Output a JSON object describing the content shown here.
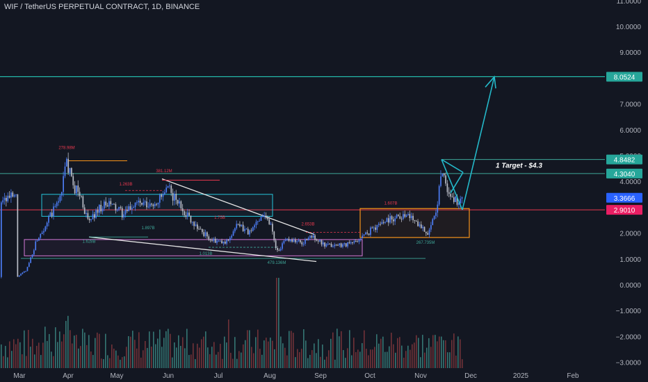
{
  "header": {
    "title": "WIF / TetherUS PERPETUAL CONTRACT, 1D, BINANCE"
  },
  "colors": {
    "background": "#131722",
    "up": "#4c7cf3",
    "down": "#b8bcc6",
    "volume_up": "#3e8f8a",
    "volume_down": "#8a3a3f",
    "target_line": "#26c6b4",
    "resistance_line": "#e9394f",
    "support_line": "#3fa89a",
    "box_cyan": "#26c6da",
    "box_pink": "#d67ad8",
    "box_orange": "#f7931a",
    "wedge_line": "#e8e8e8",
    "arrow": "#24b8c9",
    "price_badge_blue": "#2962ff",
    "price_badge_red": "#e91e63",
    "price_badge_green": "#26a69a",
    "axis_text": "#b2b5be"
  },
  "annotations": {
    "target_text": "1 Target - $4.3",
    "peak_label": "278.98M",
    "label_may": "1.263B",
    "label_jun_top": "381.12M",
    "label_may_low": "1.897B",
    "label_apr_low": "1.628B",
    "label_jul": "1.75B",
    "label_aug_low": "1.013B",
    "label_aug_vol": "479.136M",
    "label_aug_mid": "2.653B",
    "label_oct": "1.607B",
    "label_nov_low": "267.735M"
  },
  "chart_data": {
    "type": "candlestick",
    "title": "WIF / TetherUS PERPETUAL CONTRACT, 1D, BINANCE",
    "x_tick_labels": [
      "Mar",
      "Apr",
      "May",
      "Jun",
      "Jul",
      "Aug",
      "Sep",
      "Oct",
      "Nov",
      "Dec",
      "2025",
      "Feb"
    ],
    "y_tick_labels": [
      "11.0000",
      "10.0000",
      "9.0000",
      "8.0000",
      "7.0000",
      "6.0000",
      "5.0000",
      "4.0000",
      "3.0000",
      "2.0000",
      "1.0000",
      "0.0000",
      "−1.0000",
      "−2.0000",
      "−3.0000"
    ],
    "ylim": [
      -3,
      11
    ],
    "price_series": {
      "name": "WIF/USDT",
      "months": [
        "Mar",
        "Apr",
        "May",
        "Jun",
        "Jul",
        "Aug",
        "Sep",
        "Oct",
        "Nov"
      ],
      "keypoints": [
        [
          "Feb 26",
          0.3
        ],
        [
          "Mar 5",
          0.55
        ],
        [
          "Mar 12",
          1.8
        ],
        [
          "Mar 19",
          2.5
        ],
        [
          "Mar 26",
          3.3
        ],
        [
          "Mar 31",
          4.8
        ],
        [
          "Apr 3",
          3.9
        ],
        [
          "Apr 8",
          3.5
        ],
        [
          "Apr 13",
          2.4
        ],
        [
          "Apr 20",
          3.0
        ],
        [
          "Apr 27",
          3.1
        ],
        [
          "May 5",
          2.7
        ],
        [
          "May 12",
          3.2
        ],
        [
          "May 20",
          3.0
        ],
        [
          "May 28",
          3.4
        ],
        [
          "Jun 1",
          3.7
        ],
        [
          "Jun 5",
          3.3
        ],
        [
          "Jun 12",
          2.7
        ],
        [
          "Jun 20",
          2.1
        ],
        [
          "Jun 27",
          1.7
        ],
        [
          "Jul 5",
          1.6
        ],
        [
          "Jul 12",
          2.3
        ],
        [
          "Jul 20",
          2.0
        ],
        [
          "Jul 27",
          2.8
        ],
        [
          "Aug 1",
          2.4
        ],
        [
          "Aug 5",
          1.3
        ],
        [
          "Aug 12",
          1.8
        ],
        [
          "Aug 20",
          1.6
        ],
        [
          "Aug 27",
          1.9
        ],
        [
          "Sep 3",
          1.5
        ],
        [
          "Sep 12",
          1.55
        ],
        [
          "Sep 20",
          1.6
        ],
        [
          "Sep 27",
          1.9
        ],
        [
          "Oct 3",
          2.2
        ],
        [
          "Oct 10",
          2.5
        ],
        [
          "Oct 20",
          2.7
        ],
        [
          "Oct 27",
          2.6
        ],
        [
          "Nov 5",
          2.0
        ],
        [
          "Nov 10",
          2.7
        ],
        [
          "Nov 13",
          4.6
        ],
        [
          "Nov 17",
          3.6
        ],
        [
          "Nov 22",
          3.2
        ],
        [
          "Nov 26",
          3.37
        ]
      ]
    },
    "horizontal_levels": [
      {
        "value": 8.0524,
        "label": "8.0524"
      },
      {
        "value": 4.8482,
        "label": "4.8482"
      },
      {
        "value": 4.304,
        "label": "4.3040"
      },
      {
        "value": 3.3666,
        "label": "3.3666"
      },
      {
        "value": 2.901,
        "label": "2.9010"
      }
    ],
    "projection": {
      "from": [
        "Nov 26",
        2.9
      ],
      "to": [
        "Dec 15",
        8.05
      ]
    },
    "volume_note": "volume histogram shown below price in the lower area"
  }
}
